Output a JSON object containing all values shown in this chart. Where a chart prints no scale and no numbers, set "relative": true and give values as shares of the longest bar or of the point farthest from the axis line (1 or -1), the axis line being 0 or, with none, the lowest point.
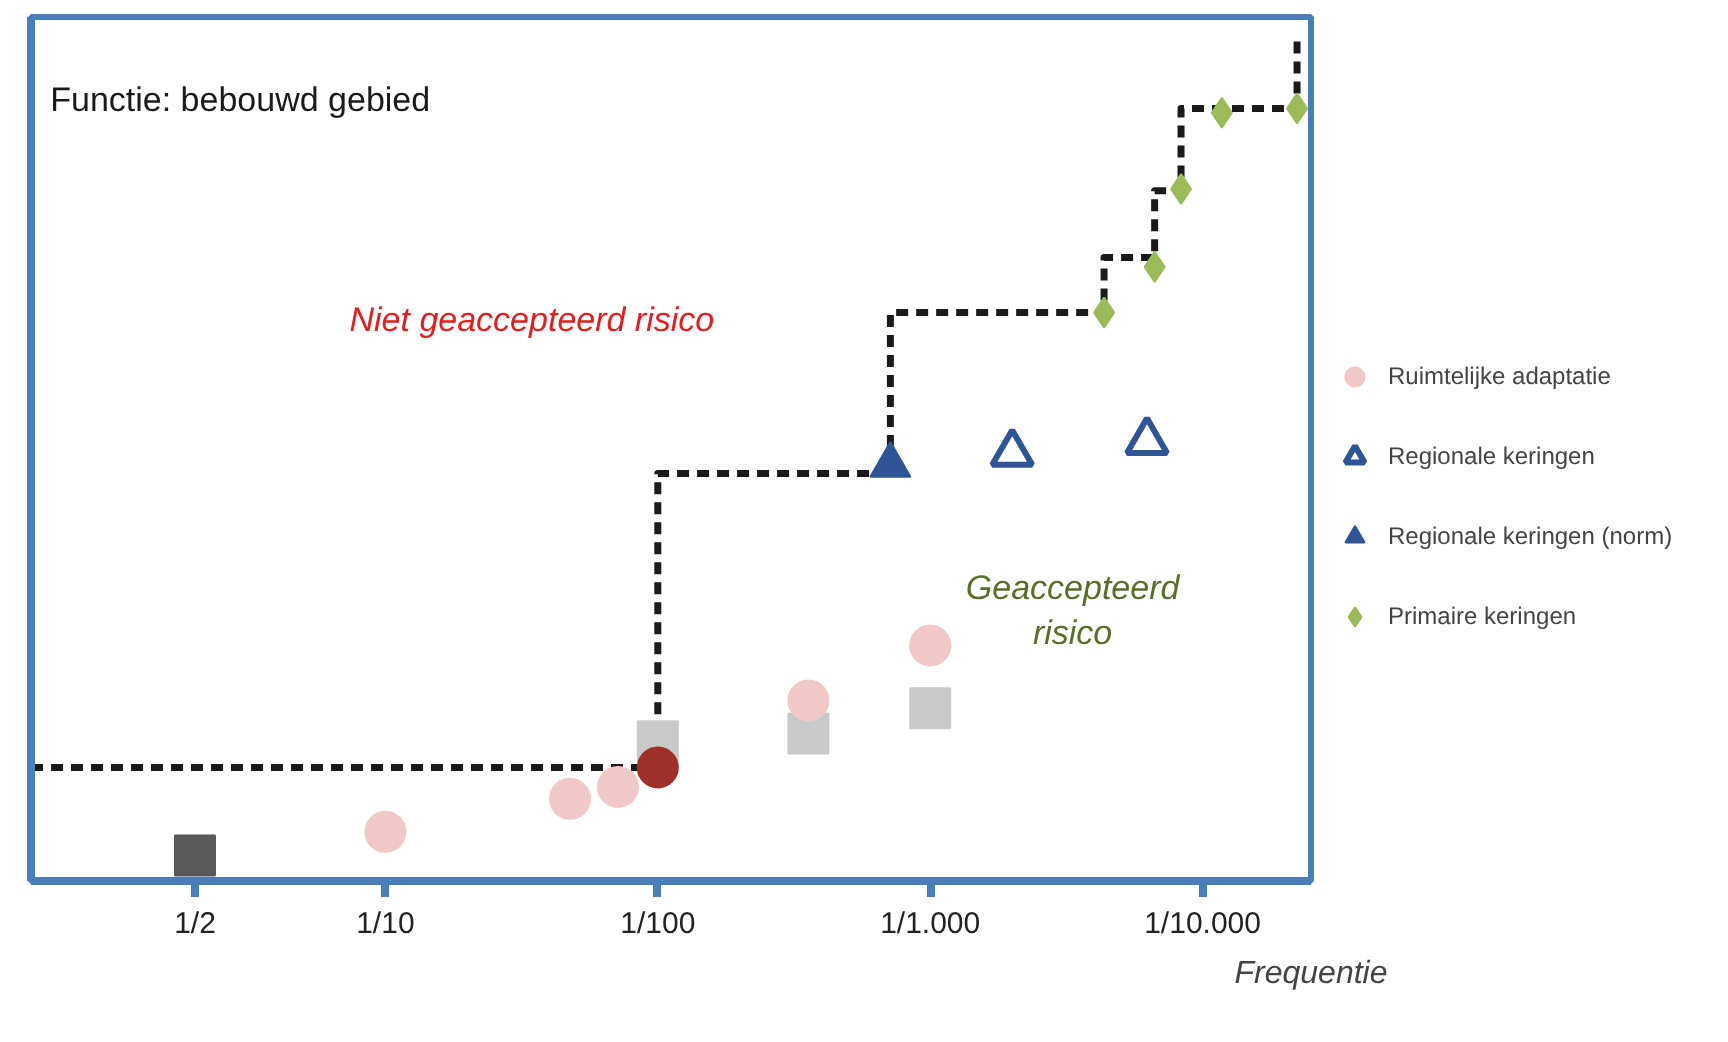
{
  "chart_data": {
    "type": "scatter",
    "relative": true,
    "xlabel": "Frequentie",
    "annotations": [
      "Functie: bebouwd gebied",
      "Niet geaccepteerd risico",
      "Geaccepteerd risico"
    ],
    "log": "x",
    "xlim": [
      2,
      4e-05
    ],
    "xticks": [
      {
        "value": 0.5,
        "label": "1/2"
      },
      {
        "value": 0.1,
        "label": "1/10"
      },
      {
        "value": 0.01,
        "label": "1/100"
      },
      {
        "value": 0.001,
        "label": "1/1.000"
      },
      {
        "value": 0.0001,
        "label": "1/10.000"
      }
    ],
    "tick_labels": "x",
    "grid": false,
    "legend": "right",
    "series": [
      {
        "type": "step",
        "color": "#1a1a1a",
        "line_style": "dashed",
        "marker": "none",
        "x": [
          2,
          0.01,
          0.0014,
          0.00023,
          0.00015,
          0.00012,
          4.5e-05
        ],
        "values": [
          0.134,
          0.481,
          0.671,
          0.736,
          0.815,
          0.912,
          1.0
        ]
      },
      {
        "color": "#c9c9c9",
        "marker": "square",
        "x": [
          0.01,
          0.0028,
          0.001
        ],
        "values": [
          0.165,
          0.174,
          0.204
        ]
      },
      {
        "name": "Ruimtelijke adaptatie",
        "color": "#f0c8c8",
        "marker": "circle",
        "x": [
          0.1,
          0.021,
          0.014,
          0.0028,
          0.001
        ],
        "values": [
          0.058,
          0.097,
          0.111,
          0.213,
          0.278
        ]
      },
      {
        "color": "#595959",
        "marker": "square",
        "x": [
          0.5
        ],
        "values": [
          0.03
        ]
      },
      {
        "color": "#a0302a",
        "marker": "circle",
        "x": [
          0.01
        ],
        "values": [
          0.134
        ]
      },
      {
        "name": "Regionale keringen",
        "color": "#2f5597",
        "marker": "triangle_open",
        "x": [
          0.0005,
          0.00016
        ],
        "values": [
          0.505,
          0.519
        ]
      },
      {
        "name": "Regionale keringen (norm)",
        "color": "#2f5597",
        "marker": "triangle",
        "x": [
          0.0014
        ],
        "values": [
          0.491
        ]
      },
      {
        "name": "Primaire keringen",
        "color": "#9bbb59",
        "marker": "diamond",
        "x": [
          0.00023,
          0.00015,
          0.00012,
          8.5e-05,
          4.5e-05
        ],
        "values": [
          0.671,
          0.725,
          0.817,
          0.907,
          0.912
        ]
      }
    ]
  }
}
